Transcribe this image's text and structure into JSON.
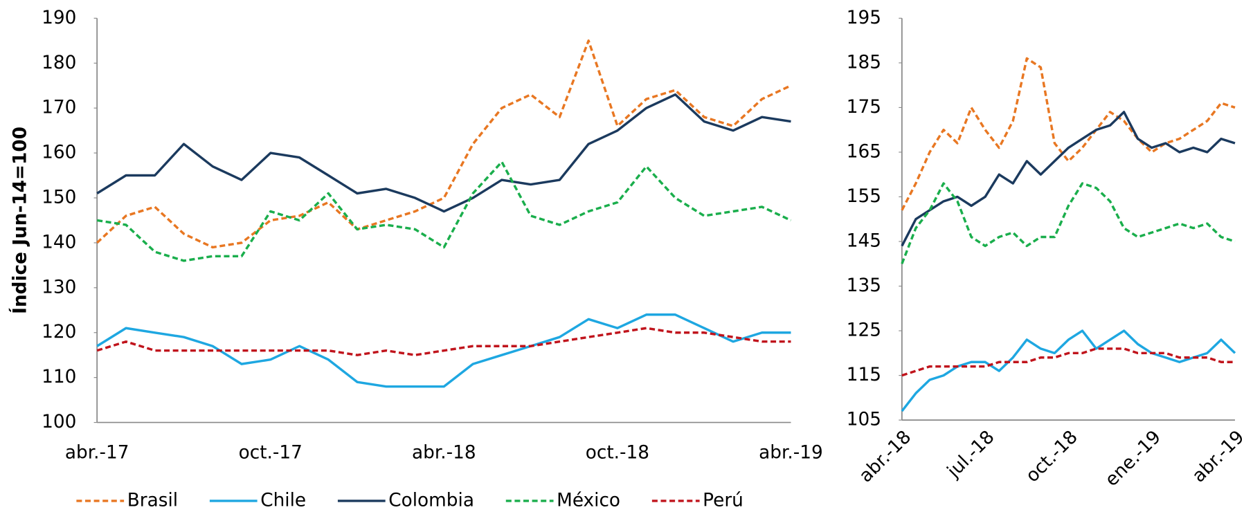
{
  "chart_data": [
    {
      "type": "line",
      "y_label": "Índice Jun-14=100",
      "categories": [
        "abr.-17",
        null,
        null,
        null,
        null,
        null,
        "oct.-17",
        null,
        null,
        null,
        null,
        null,
        "abr.-18",
        null,
        null,
        null,
        null,
        null,
        "oct.-18",
        null,
        null,
        null,
        null,
        null,
        "abr.-19"
      ],
      "ylim": [
        100,
        190
      ],
      "yticks": [
        100,
        110,
        120,
        130,
        140,
        150,
        160,
        170,
        180,
        190
      ],
      "x_label_rotation": 0,
      "legend": "bottom",
      "series": [
        {
          "name": "Brasil",
          "color": "#e87722",
          "dashed": true,
          "values": [
            140,
            146,
            148,
            142,
            139,
            140,
            145,
            146,
            149,
            143,
            145,
            147,
            150,
            162,
            170,
            173,
            168,
            185,
            166,
            172,
            174,
            168,
            166,
            172,
            175
          ]
        },
        {
          "name": "Chile",
          "color": "#1ea7e1",
          "dashed": false,
          "values": [
            117,
            121,
            120,
            119,
            117,
            113,
            114,
            117,
            114,
            109,
            108,
            108,
            108,
            113,
            115,
            117,
            119,
            123,
            121,
            124,
            124,
            121,
            118,
            120,
            120
          ]
        },
        {
          "name": "Colombia",
          "color": "#1b3a5e",
          "dashed": false,
          "values": [
            151,
            155,
            155,
            162,
            157,
            154,
            160,
            159,
            155,
            151,
            152,
            150,
            147,
            150,
            154,
            153,
            154,
            162,
            165,
            170,
            173,
            167,
            165,
            168,
            167
          ]
        },
        {
          "name": "México",
          "color": "#1aae4c",
          "dashed": true,
          "values": [
            145,
            144,
            138,
            136,
            137,
            137,
            147,
            145,
            151,
            143,
            144,
            143,
            139,
            151,
            158,
            146,
            144,
            147,
            149,
            157,
            150,
            146,
            147,
            148,
            145
          ]
        },
        {
          "name": "Perú",
          "color": "#c0141c",
          "dashed": true,
          "values": [
            116,
            118,
            116,
            116,
            116,
            116,
            116,
            116,
            116,
            115,
            116,
            115,
            116,
            117,
            117,
            117,
            118,
            119,
            120,
            121,
            120,
            120,
            119,
            118,
            118
          ]
        }
      ]
    },
    {
      "type": "line",
      "categories": [
        "abr.-18",
        null,
        null,
        null,
        null,
        null,
        "jul.-18",
        null,
        null,
        null,
        null,
        null,
        "oct.-18",
        null,
        null,
        null,
        null,
        null,
        "ene.-19",
        null,
        null,
        null,
        null,
        null,
        "abr.-19"
      ],
      "ylim": [
        105,
        195
      ],
      "yticks": [
        105,
        115,
        125,
        135,
        145,
        155,
        165,
        175,
        185,
        195
      ],
      "x_label_rotation": -45,
      "series": [
        {
          "color": "#e87722",
          "dashed": true,
          "values": [
            152,
            158,
            165,
            170,
            167,
            175,
            170,
            166,
            172,
            186,
            184,
            167,
            163,
            166,
            170,
            174,
            172,
            168,
            165,
            167,
            168,
            170,
            172,
            176,
            175
          ]
        },
        {
          "color": "#1ea7e1",
          "dashed": false,
          "values": [
            107,
            111,
            114,
            115,
            117,
            118,
            118,
            116,
            119,
            123,
            121,
            120,
            123,
            125,
            121,
            123,
            125,
            122,
            120,
            119,
            118,
            119,
            120,
            123,
            120
          ]
        },
        {
          "color": "#1b3a5e",
          "dashed": false,
          "values": [
            144,
            150,
            152,
            154,
            155,
            153,
            155,
            160,
            158,
            163,
            160,
            163,
            166,
            168,
            170,
            171,
            174,
            168,
            166,
            167,
            165,
            166,
            165,
            168,
            167
          ]
        },
        {
          "color": "#1aae4c",
          "dashed": true,
          "values": [
            140,
            148,
            152,
            158,
            154,
            146,
            144,
            146,
            147,
            144,
            146,
            146,
            153,
            158,
            157,
            154,
            148,
            146,
            147,
            148,
            149,
            148,
            149,
            146,
            145
          ]
        },
        {
          "color": "#c0141c",
          "dashed": true,
          "values": [
            115,
            116,
            117,
            117,
            117,
            117,
            117,
            118,
            118,
            118,
            119,
            119,
            120,
            120,
            121,
            121,
            121,
            120,
            120,
            120,
            119,
            119,
            119,
            118,
            118
          ]
        }
      ]
    }
  ]
}
